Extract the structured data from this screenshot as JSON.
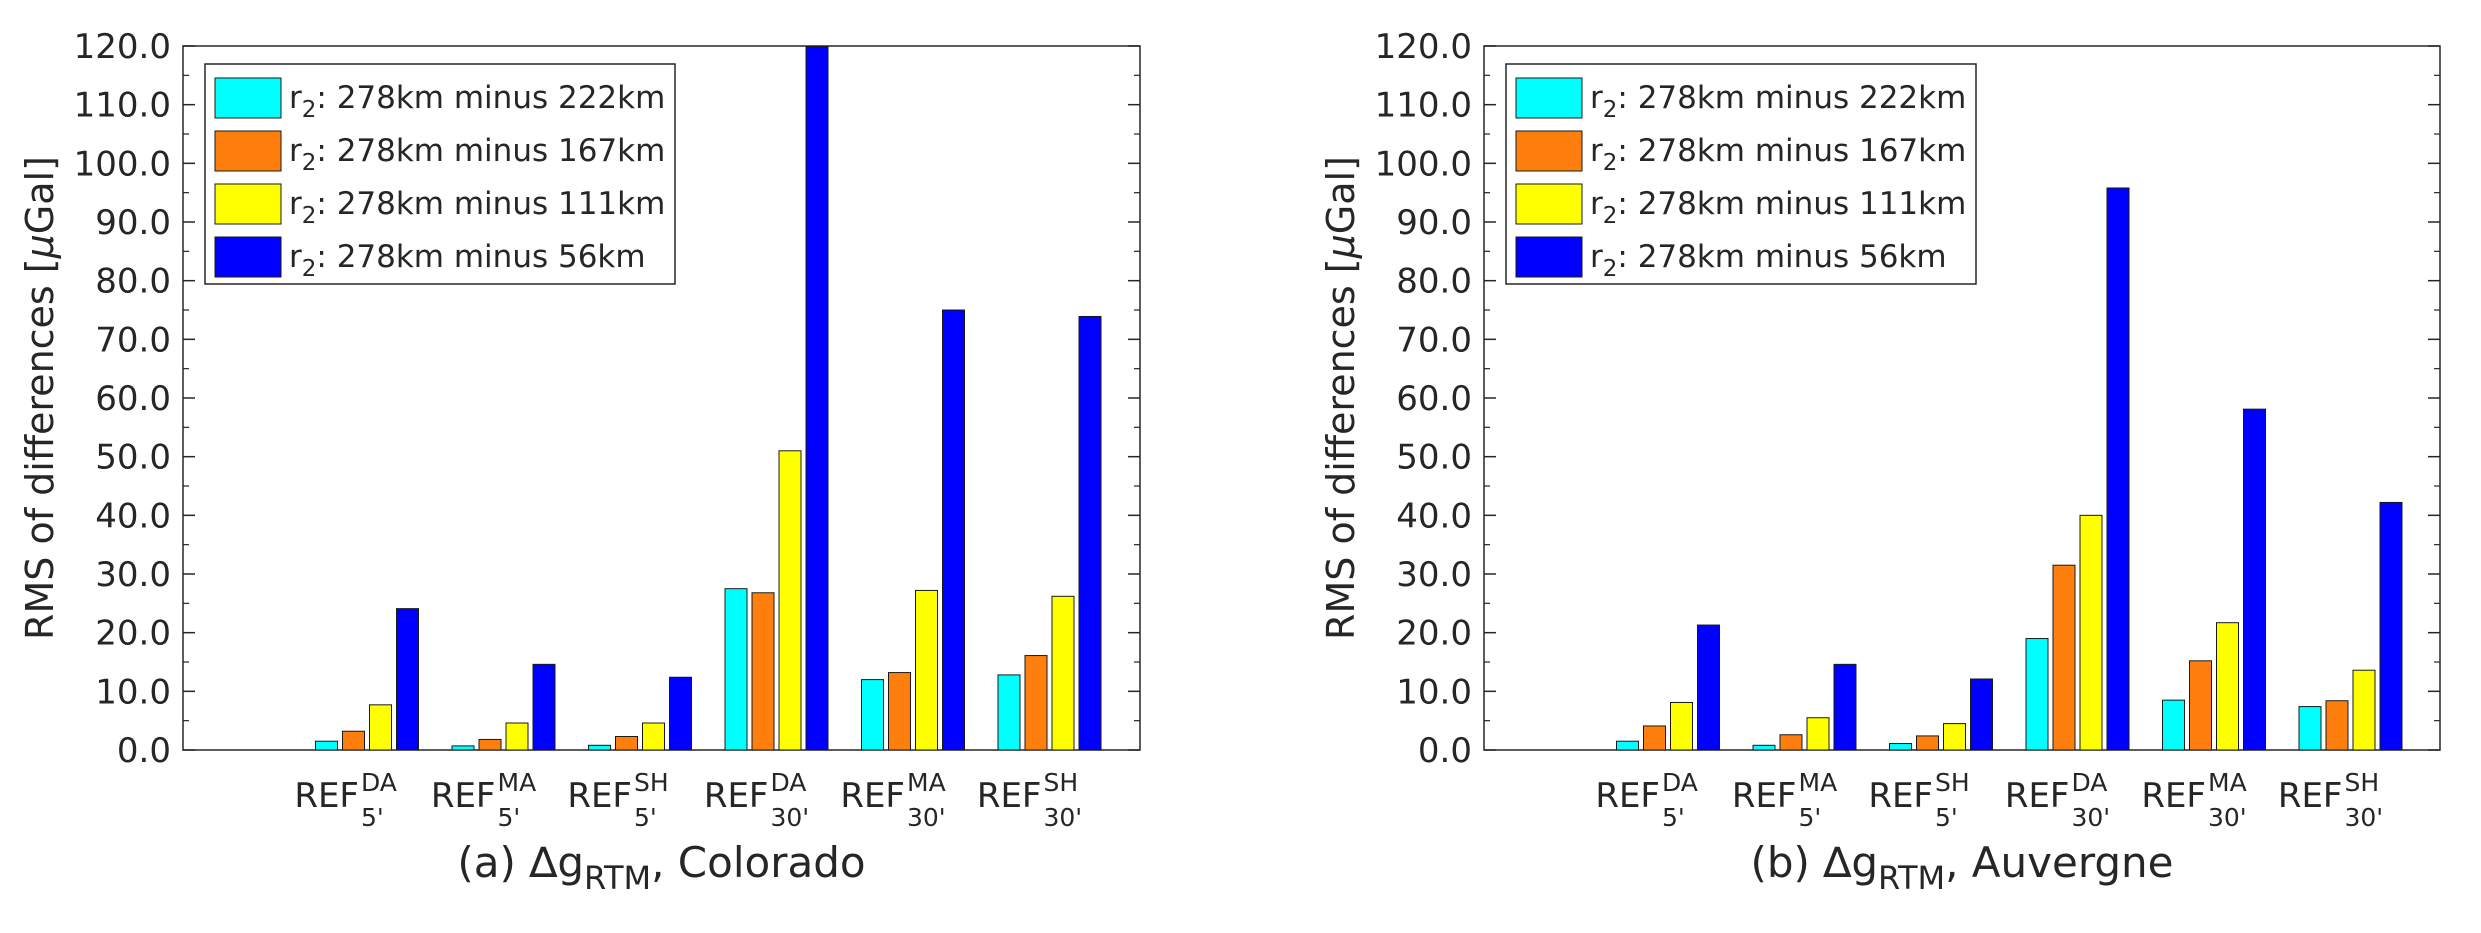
{
  "chart_data": [
    {
      "type": "bar",
      "title_parts": {
        "prefix": "(a) ∆g",
        "subscript": "RTM",
        "suffix": ", Colorado"
      },
      "ylabel_parts": {
        "before": "RMS of differences [",
        "mu": "μ",
        "after": "Gal]"
      },
      "ylim": [
        0,
        120
      ],
      "yticks": [
        "0.0",
        "10.0",
        "20.0",
        "30.0",
        "40.0",
        "50.0",
        "60.0",
        "70.0",
        "80.0",
        "90.0",
        "100.0",
        "110.0",
        "120.0"
      ],
      "categories": [
        {
          "base": "REF",
          "sup": "DA",
          "sub": "5'"
        },
        {
          "base": "REF",
          "sup": "MA",
          "sub": "5'"
        },
        {
          "base": "REF",
          "sup": "SH",
          "sub": "5'"
        },
        {
          "base": "REF",
          "sup": "DA",
          "sub": "30'"
        },
        {
          "base": "REF",
          "sup": "MA",
          "sub": "30'"
        },
        {
          "base": "REF",
          "sup": "SH",
          "sub": "30'"
        }
      ],
      "legend_position": "top-left",
      "series": [
        {
          "name_base": "r",
          "name_sub": "2",
          "name_rest": ": 278km minus 222km",
          "color": "#00ffff",
          "values": [
            1.5,
            0.7,
            0.8,
            27.5,
            12.0,
            12.8
          ]
        },
        {
          "name_base": "r",
          "name_sub": "2",
          "name_rest": ": 278km minus 167km",
          "color": "#ff7f0e",
          "values": [
            3.2,
            1.8,
            2.3,
            26.8,
            13.2,
            16.1
          ]
        },
        {
          "name_base": "r",
          "name_sub": "2",
          "name_rest": ": 278km minus 111km",
          "color": "#ffff00",
          "values": [
            7.7,
            4.6,
            4.6,
            51.0,
            27.2,
            26.2
          ]
        },
        {
          "name_base": "r",
          "name_sub": "2",
          "name_rest": ": 278km minus 56km",
          "color": "#0000ff",
          "values": [
            24.1,
            14.6,
            12.4,
            119.9,
            75.0,
            73.9
          ]
        }
      ]
    },
    {
      "type": "bar",
      "title_parts": {
        "prefix": "(b) ∆g",
        "subscript": "RTM",
        "suffix": ", Auvergne"
      },
      "ylabel_parts": {
        "before": "RMS of differences [",
        "mu": "μ",
        "after": "Gal]"
      },
      "ylim": [
        0,
        120
      ],
      "yticks": [
        "0.0",
        "10.0",
        "20.0",
        "30.0",
        "40.0",
        "50.0",
        "60.0",
        "70.0",
        "80.0",
        "90.0",
        "100.0",
        "110.0",
        "120.0"
      ],
      "categories": [
        {
          "base": "REF",
          "sup": "DA",
          "sub": "5'"
        },
        {
          "base": "REF",
          "sup": "MA",
          "sub": "5'"
        },
        {
          "base": "REF",
          "sup": "SH",
          "sub": "5'"
        },
        {
          "base": "REF",
          "sup": "DA",
          "sub": "30'"
        },
        {
          "base": "REF",
          "sup": "MA",
          "sub": "30'"
        },
        {
          "base": "REF",
          "sup": "SH",
          "sub": "30'"
        }
      ],
      "legend_position": "top-left",
      "series": [
        {
          "name_base": "r",
          "name_sub": "2",
          "name_rest": ": 278km minus 222km",
          "color": "#00ffff",
          "values": [
            1.5,
            0.8,
            1.1,
            19.0,
            8.5,
            7.4
          ]
        },
        {
          "name_base": "r",
          "name_sub": "2",
          "name_rest": ": 278km minus 167km",
          "color": "#ff7f0e",
          "values": [
            4.1,
            2.6,
            2.4,
            31.5,
            15.2,
            8.4
          ]
        },
        {
          "name_base": "r",
          "name_sub": "2",
          "name_rest": ": 278km minus 111km",
          "color": "#ffff00",
          "values": [
            8.1,
            5.5,
            4.5,
            40.0,
            21.7,
            13.6
          ]
        },
        {
          "name_base": "r",
          "name_sub": "2",
          "name_rest": ": 278km minus 56km",
          "color": "#0000ff",
          "values": [
            21.3,
            14.6,
            12.1,
            95.8,
            58.1,
            42.2
          ]
        }
      ]
    }
  ]
}
